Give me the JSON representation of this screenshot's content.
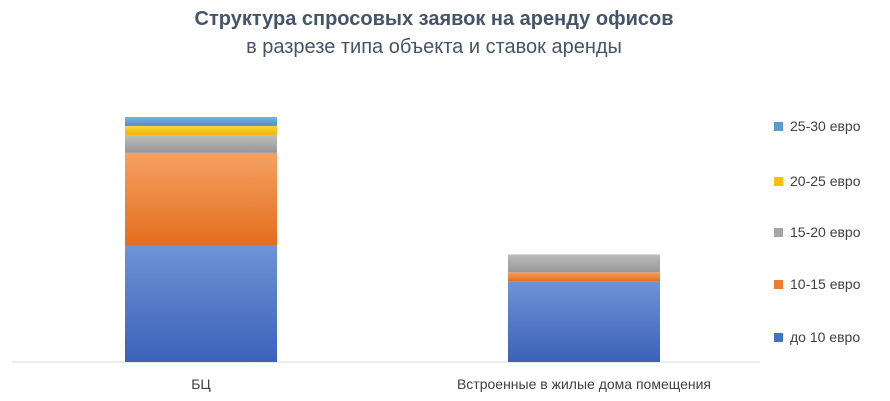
{
  "chart_data": {
    "type": "bar",
    "stacked": true,
    "title": "Структура спросовых заявок на аренду офисов",
    "subtitle": "в разрезе типа объекта и ставок аренды",
    "categories": [
      "БЦ",
      "Встроенные в жилые дома помещения"
    ],
    "series": [
      {
        "name": "до 10 евро",
        "values": [
          39,
          27
        ],
        "color": "#4472c4"
      },
      {
        "name": "10-15 евро",
        "values": [
          31,
          3
        ],
        "color": "#ed7d31"
      },
      {
        "name": "15-20 евро",
        "values": [
          6,
          6
        ],
        "color": "#a5a5a5"
      },
      {
        "name": "20-25 евро",
        "values": [
          3,
          0
        ],
        "color": "#ffc000"
      },
      {
        "name": "25-30 евро",
        "values": [
          3,
          0
        ],
        "color": "#5b9bd5"
      }
    ],
    "ylim": [
      0,
      85
    ],
    "grid": false,
    "legend_position": "right"
  }
}
